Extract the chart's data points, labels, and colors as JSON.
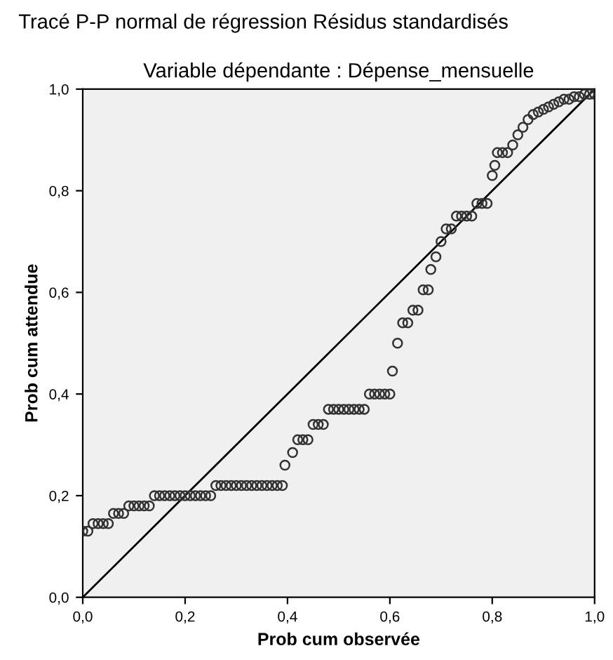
{
  "chart_data": {
    "type": "scatter",
    "title": "Tracé P-P normal de régression Résidus standardisés",
    "subtitle": "Variable dépendante : Dépense_mensuelle",
    "xlabel": "Prob cum observée",
    "ylabel": "Prob cum attendue",
    "xlim": [
      0,
      1
    ],
    "ylim": [
      0,
      1
    ],
    "xticks": [
      {
        "value": 0,
        "label": "0,0"
      },
      {
        "value": 0.2,
        "label": "0,2"
      },
      {
        "value": 0.4,
        "label": "0,4"
      },
      {
        "value": 0.6,
        "label": "0,6"
      },
      {
        "value": 0.8,
        "label": "0,8"
      },
      {
        "value": 1,
        "label": "1,0"
      }
    ],
    "yticks": [
      {
        "value": 0,
        "label": "0,0"
      },
      {
        "value": 0.2,
        "label": "0,2"
      },
      {
        "value": 0.4,
        "label": "0,4"
      },
      {
        "value": 0.6,
        "label": "0,6"
      },
      {
        "value": 0.8,
        "label": "0,8"
      },
      {
        "value": 1,
        "label": "1,0"
      }
    ],
    "grid": false,
    "legend": false,
    "marker": "circle",
    "series": [
      {
        "color": "#333333",
        "x": [
          0.0,
          0.01,
          0.02,
          0.03,
          0.04,
          0.05,
          0.06,
          0.07,
          0.08,
          0.09,
          0.1,
          0.11,
          0.12,
          0.13,
          0.14,
          0.15,
          0.16,
          0.17,
          0.18,
          0.19,
          0.2,
          0.21,
          0.22,
          0.23,
          0.24,
          0.25,
          0.26,
          0.27,
          0.28,
          0.29,
          0.3,
          0.31,
          0.32,
          0.33,
          0.34,
          0.35,
          0.36,
          0.37,
          0.38,
          0.39,
          0.395,
          0.41,
          0.42,
          0.43,
          0.44,
          0.45,
          0.46,
          0.47,
          0.48,
          0.49,
          0.5,
          0.51,
          0.52,
          0.53,
          0.54,
          0.55,
          0.56,
          0.57,
          0.58,
          0.59,
          0.6,
          0.605,
          0.615,
          0.625,
          0.635,
          0.645,
          0.655,
          0.665,
          0.675,
          0.68,
          0.69,
          0.7,
          0.71,
          0.72,
          0.73,
          0.74,
          0.75,
          0.76,
          0.77,
          0.78,
          0.79,
          0.8,
          0.805,
          0.81,
          0.82,
          0.83,
          0.84,
          0.85,
          0.86,
          0.87,
          0.88,
          0.89,
          0.9,
          0.91,
          0.92,
          0.93,
          0.94,
          0.95,
          0.96,
          0.97,
          0.98,
          0.99,
          1.0
        ],
        "values": [
          0.13,
          0.13,
          0.145,
          0.145,
          0.145,
          0.145,
          0.165,
          0.165,
          0.165,
          0.18,
          0.18,
          0.18,
          0.18,
          0.18,
          0.2,
          0.2,
          0.2,
          0.2,
          0.2,
          0.2,
          0.2,
          0.2,
          0.2,
          0.2,
          0.2,
          0.2,
          0.22,
          0.22,
          0.22,
          0.22,
          0.22,
          0.22,
          0.22,
          0.22,
          0.22,
          0.22,
          0.22,
          0.22,
          0.22,
          0.22,
          0.26,
          0.285,
          0.31,
          0.31,
          0.31,
          0.34,
          0.34,
          0.34,
          0.37,
          0.37,
          0.37,
          0.37,
          0.37,
          0.37,
          0.37,
          0.37,
          0.4,
          0.4,
          0.4,
          0.4,
          0.4,
          0.445,
          0.5,
          0.54,
          0.54,
          0.565,
          0.565,
          0.605,
          0.605,
          0.645,
          0.67,
          0.7,
          0.725,
          0.725,
          0.75,
          0.75,
          0.75,
          0.75,
          0.775,
          0.775,
          0.775,
          0.83,
          0.85,
          0.875,
          0.875,
          0.875,
          0.89,
          0.91,
          0.925,
          0.94,
          0.95,
          0.955,
          0.96,
          0.965,
          0.97,
          0.975,
          0.98,
          0.98,
          0.985,
          0.985,
          0.99,
          0.99,
          0.99
        ]
      },
      {
        "type": "line",
        "color": "#000000",
        "x": [
          0,
          1
        ],
        "values": [
          0,
          1
        ],
        "marker": "none",
        "line_style": "solid"
      }
    ]
  }
}
